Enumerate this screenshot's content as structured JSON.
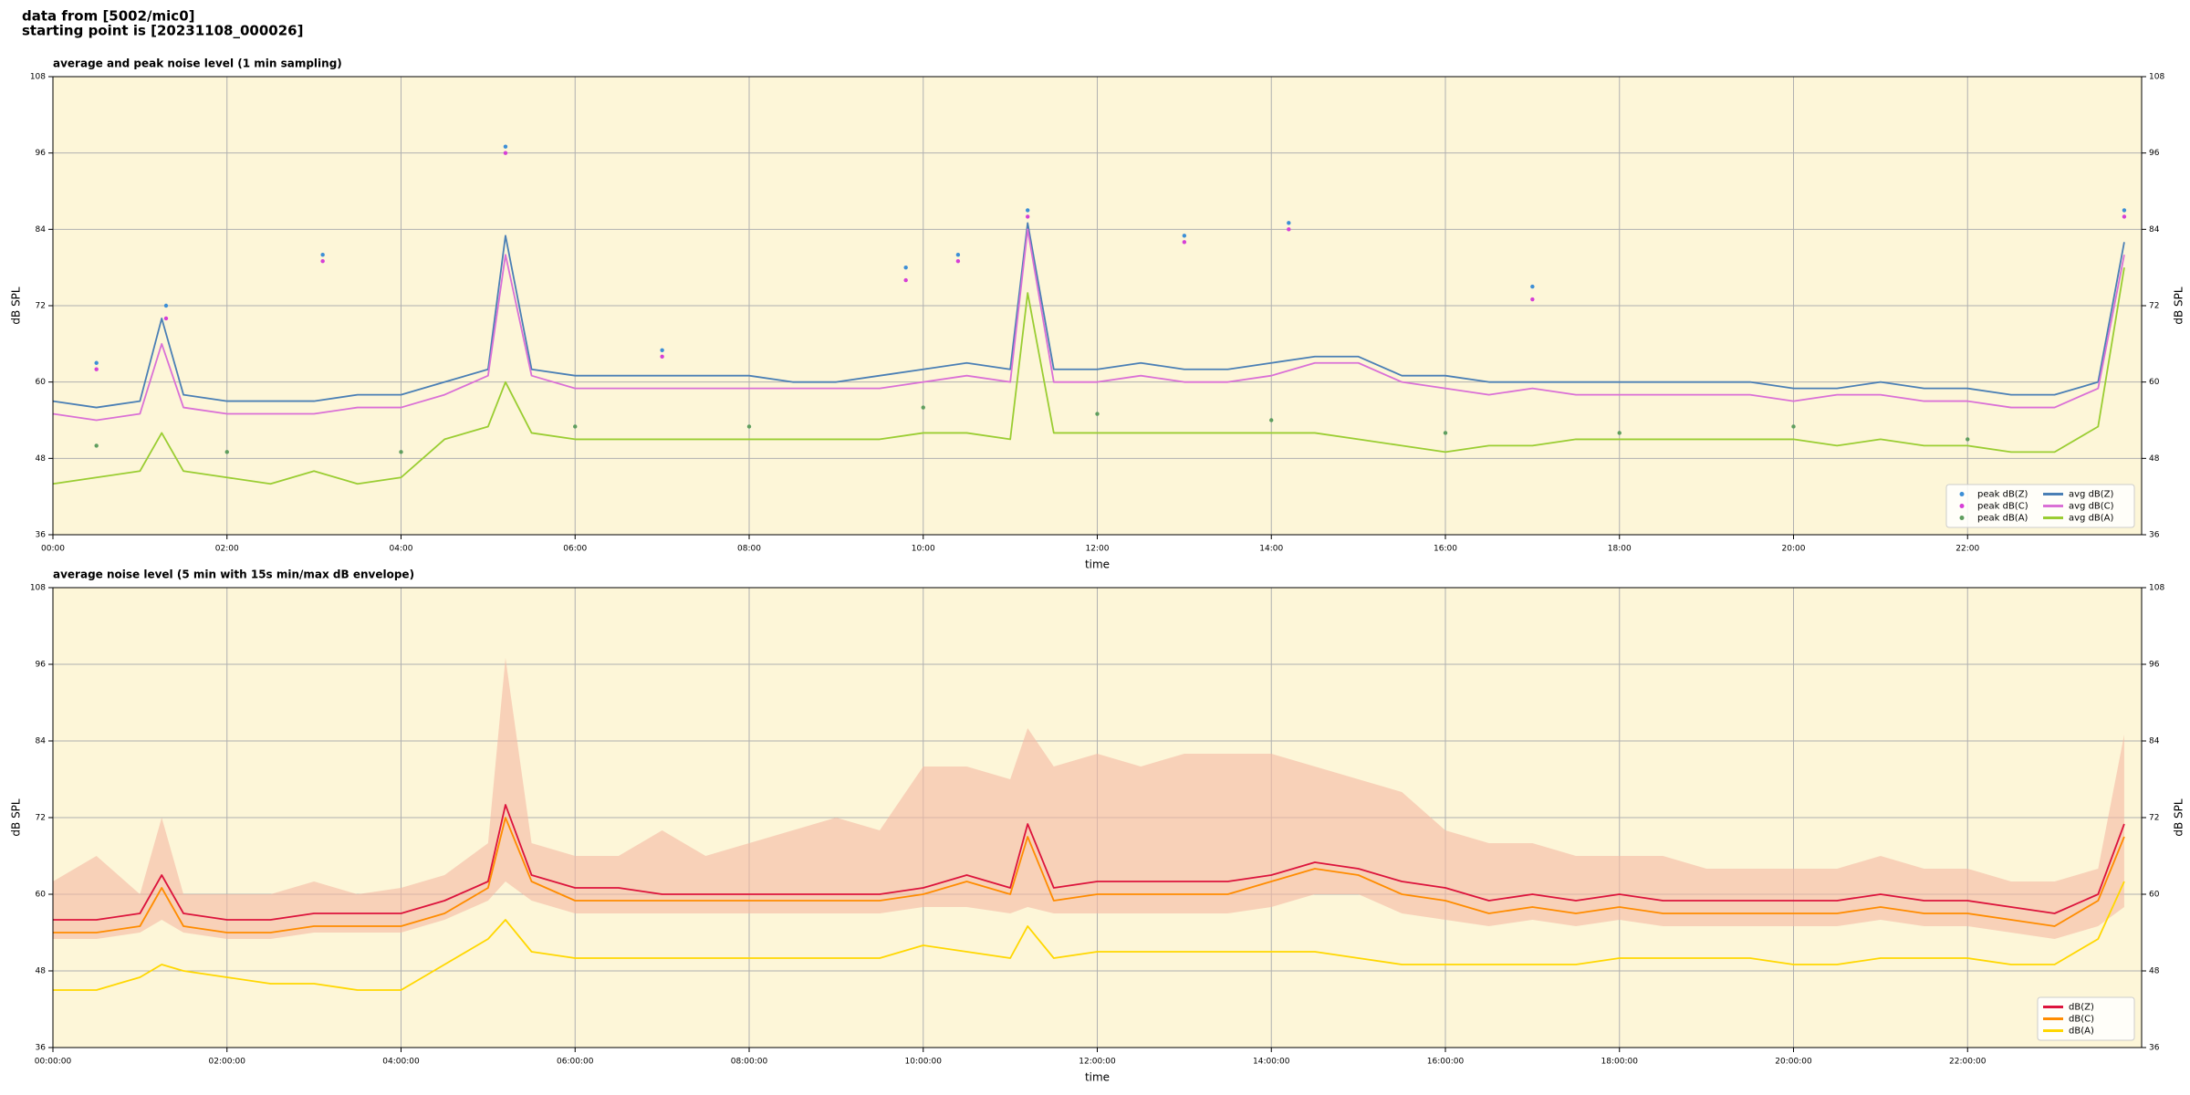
{
  "header": {
    "line1": "data from [5002/mic0]",
    "line2": "starting point is [20231108_000026]"
  },
  "chart_data": [
    {
      "type": "line",
      "title": "average and peak noise level (1 min sampling)",
      "x_label": "time",
      "y_label": "dB SPL",
      "xlim": [
        0,
        24
      ],
      "ylim": [
        36,
        108
      ],
      "xticks": [
        {
          "value": 0,
          "label": "00:00"
        },
        {
          "value": 2,
          "label": "02:00"
        },
        {
          "value": 4,
          "label": "04:00"
        },
        {
          "value": 6,
          "label": "06:00"
        },
        {
          "value": 8,
          "label": "08:00"
        },
        {
          "value": 10,
          "label": "10:00"
        },
        {
          "value": 12,
          "label": "12:00"
        },
        {
          "value": 14,
          "label": "14:00"
        },
        {
          "value": 16,
          "label": "16:00"
        },
        {
          "value": 18,
          "label": "18:00"
        },
        {
          "value": 20,
          "label": "20:00"
        },
        {
          "value": 22,
          "label": "22:00"
        }
      ],
      "yticks": [
        36,
        48,
        60,
        72,
        84,
        96,
        108
      ],
      "grid": true,
      "legend": "lower right",
      "legend_columns": 2,
      "background": "#fdf6d8",
      "x": [
        0,
        0.5,
        1,
        1.25,
        1.5,
        2,
        2.5,
        3,
        3.5,
        4,
        4.5,
        5,
        5.2,
        5.5,
        6,
        6.5,
        7,
        7.5,
        8,
        8.5,
        9,
        9.5,
        10,
        10.5,
        11,
        11.2,
        11.5,
        12,
        12.5,
        13,
        13.5,
        14,
        14.5,
        15,
        15.5,
        16,
        16.5,
        17,
        17.5,
        18,
        18.5,
        19,
        19.5,
        20,
        20.5,
        21,
        21.5,
        22,
        22.5,
        23,
        23.5,
        23.8
      ],
      "series": [
        {
          "name": "peak dB(Z)",
          "type": "scatter",
          "color": "#3d8fd6",
          "x": [
            0.5,
            1.3,
            3.1,
            5.2,
            7.0,
            9.8,
            10.4,
            11.2,
            13.0,
            14.2,
            17.0,
            23.8
          ],
          "values": [
            63,
            72,
            80,
            97,
            65,
            78,
            80,
            87,
            83,
            85,
            75,
            87
          ]
        },
        {
          "name": "peak dB(C)",
          "type": "scatter",
          "color": "#d63fd6",
          "x": [
            0.5,
            1.3,
            3.1,
            5.2,
            7.0,
            9.8,
            10.4,
            11.2,
            13.0,
            14.2,
            17.0,
            23.8
          ],
          "values": [
            62,
            70,
            79,
            96,
            64,
            76,
            79,
            86,
            82,
            84,
            73,
            86
          ]
        },
        {
          "name": "peak dB(A)",
          "type": "scatter",
          "color": "#5f9e5f",
          "x": [
            0.5,
            2.0,
            4.0,
            6.0,
            8.0,
            10.0,
            12.0,
            14.0,
            16.0,
            18.0,
            20.0,
            22.0
          ],
          "values": [
            50,
            49,
            49,
            53,
            53,
            56,
            55,
            54,
            52,
            52,
            53,
            51
          ]
        },
        {
          "name": "avg dB(Z)",
          "type": "line",
          "color": "#4a7fb5",
          "values": [
            57,
            56,
            57,
            70,
            58,
            57,
            57,
            57,
            58,
            58,
            60,
            62,
            83,
            62,
            61,
            61,
            61,
            61,
            61,
            60,
            60,
            61,
            62,
            63,
            62,
            85,
            62,
            62,
            63,
            62,
            62,
            63,
            64,
            64,
            61,
            61,
            60,
            60,
            60,
            60,
            60,
            60,
            60,
            59,
            59,
            60,
            59,
            59,
            58,
            58,
            60,
            82
          ]
        },
        {
          "name": "avg dB(C)",
          "type": "line",
          "color": "#da70d6",
          "values": [
            55,
            54,
            55,
            66,
            56,
            55,
            55,
            55,
            56,
            56,
            58,
            61,
            80,
            61,
            59,
            59,
            59,
            59,
            59,
            59,
            59,
            59,
            60,
            61,
            60,
            84,
            60,
            60,
            61,
            60,
            60,
            61,
            63,
            63,
            60,
            59,
            58,
            59,
            58,
            58,
            58,
            58,
            58,
            57,
            58,
            58,
            57,
            57,
            56,
            56,
            59,
            80
          ]
        },
        {
          "name": "avg dB(A)",
          "type": "line",
          "color": "#9acd32",
          "values": [
            44,
            45,
            46,
            52,
            46,
            45,
            44,
            46,
            44,
            45,
            51,
            53,
            60,
            52,
            51,
            51,
            51,
            51,
            51,
            51,
            51,
            51,
            52,
            52,
            51,
            74,
            52,
            52,
            52,
            52,
            52,
            52,
            52,
            51,
            50,
            49,
            50,
            50,
            51,
            51,
            51,
            51,
            51,
            51,
            50,
            51,
            50,
            50,
            49,
            49,
            53,
            78
          ]
        }
      ]
    },
    {
      "type": "line",
      "title": "average noise level (5 min with 15s min/max dB envelope)",
      "x_label": "time",
      "y_label": "dB SPL",
      "xlim": [
        0,
        24
      ],
      "ylim": [
        36,
        108
      ],
      "xticks": [
        {
          "value": 0,
          "label": "00:00:00"
        },
        {
          "value": 2,
          "label": "02:00:00"
        },
        {
          "value": 4,
          "label": "04:00:00"
        },
        {
          "value": 6,
          "label": "06:00:00"
        },
        {
          "value": 8,
          "label": "08:00:00"
        },
        {
          "value": 10,
          "label": "10:00:00"
        },
        {
          "value": 12,
          "label": "12:00:00"
        },
        {
          "value": 14,
          "label": "14:00:00"
        },
        {
          "value": 16,
          "label": "16:00:00"
        },
        {
          "value": 18,
          "label": "18:00:00"
        },
        {
          "value": 20,
          "label": "20:00:00"
        },
        {
          "value": 22,
          "label": "22:00:00"
        }
      ],
      "yticks": [
        36,
        48,
        60,
        72,
        84,
        96,
        108
      ],
      "grid": true,
      "legend": "lower right",
      "legend_columns": 1,
      "background": "#fdf6d8",
      "x": [
        0,
        0.5,
        1,
        1.25,
        1.5,
        2,
        2.5,
        3,
        3.5,
        4,
        4.5,
        5,
        5.2,
        5.5,
        6,
        6.5,
        7,
        7.5,
        8,
        8.5,
        9,
        9.5,
        10,
        10.5,
        11,
        11.2,
        11.5,
        12,
        12.5,
        13,
        13.5,
        14,
        14.5,
        15,
        15.5,
        16,
        16.5,
        17,
        17.5,
        18,
        18.5,
        19,
        19.5,
        20,
        20.5,
        21,
        21.5,
        22,
        22.5,
        23,
        23.5,
        23.8
      ],
      "envelope": {
        "color": "#f5b9a3",
        "upper": [
          62,
          66,
          60,
          72,
          60,
          60,
          60,
          62,
          60,
          61,
          63,
          68,
          97,
          68,
          66,
          66,
          70,
          66,
          68,
          70,
          72,
          70,
          80,
          80,
          78,
          86,
          80,
          82,
          80,
          82,
          82,
          82,
          80,
          78,
          76,
          70,
          68,
          68,
          66,
          66,
          66,
          64,
          64,
          64,
          64,
          66,
          64,
          64,
          62,
          62,
          64,
          85
        ],
        "lower": [
          53,
          53,
          54,
          56,
          54,
          53,
          53,
          54,
          54,
          54,
          56,
          59,
          62,
          59,
          57,
          57,
          57,
          57,
          57,
          57,
          57,
          57,
          58,
          58,
          57,
          58,
          57,
          57,
          57,
          57,
          57,
          58,
          60,
          60,
          57,
          56,
          55,
          56,
          55,
          56,
          55,
          55,
          55,
          55,
          55,
          56,
          55,
          55,
          54,
          53,
          55,
          58
        ]
      },
      "series": [
        {
          "name": "dB(Z)",
          "type": "line",
          "color": "#dc143c",
          "values": [
            56,
            56,
            57,
            63,
            57,
            56,
            56,
            57,
            57,
            57,
            59,
            62,
            74,
            63,
            61,
            61,
            60,
            60,
            60,
            60,
            60,
            60,
            61,
            63,
            61,
            71,
            61,
            62,
            62,
            62,
            62,
            63,
            65,
            64,
            62,
            61,
            59,
            60,
            59,
            60,
            59,
            59,
            59,
            59,
            59,
            60,
            59,
            59,
            58,
            57,
            60,
            71
          ]
        },
        {
          "name": "dB(C)",
          "type": "line",
          "color": "#ff8c00",
          "values": [
            54,
            54,
            55,
            61,
            55,
            54,
            54,
            55,
            55,
            55,
            57,
            61,
            72,
            62,
            59,
            59,
            59,
            59,
            59,
            59,
            59,
            59,
            60,
            62,
            60,
            69,
            59,
            60,
            60,
            60,
            60,
            62,
            64,
            63,
            60,
            59,
            57,
            58,
            57,
            58,
            57,
            57,
            57,
            57,
            57,
            58,
            57,
            57,
            56,
            55,
            59,
            69
          ]
        },
        {
          "name": "dB(A)",
          "type": "line",
          "color": "#ffd700",
          "values": [
            45,
            45,
            47,
            49,
            48,
            47,
            46,
            46,
            45,
            45,
            49,
            53,
            56,
            51,
            50,
            50,
            50,
            50,
            50,
            50,
            50,
            50,
            52,
            51,
            50,
            55,
            50,
            51,
            51,
            51,
            51,
            51,
            51,
            50,
            49,
            49,
            49,
            49,
            49,
            50,
            50,
            50,
            50,
            49,
            49,
            50,
            50,
            50,
            49,
            49,
            53,
            62
          ]
        }
      ]
    }
  ]
}
